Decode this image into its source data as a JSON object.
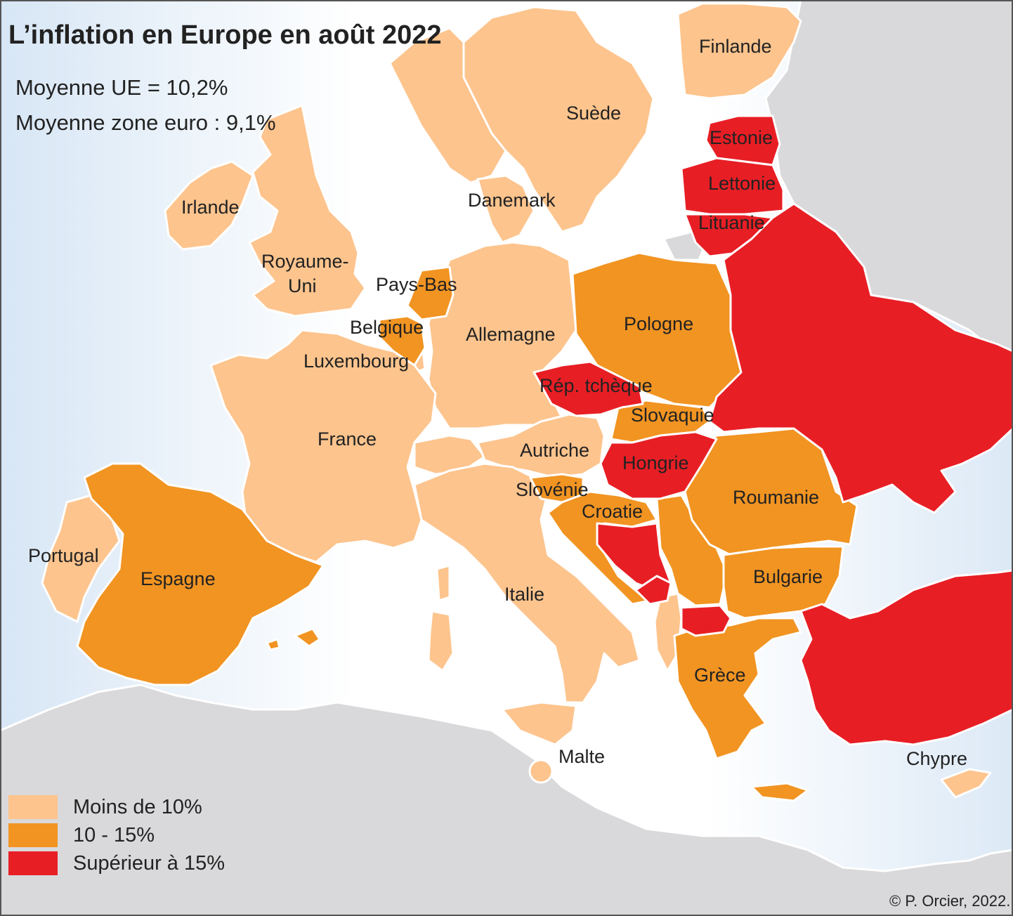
{
  "title": "L’inflation en Europe en août 2022",
  "averages": {
    "eu": "Moyenne UE = 10,2%",
    "eurozone": "Moyenne zone euro : 9,1%"
  },
  "colors": {
    "sea_light": "#ffffff",
    "sea_dark": "#d7e6f5",
    "outside": "#d9d9db",
    "low": "#fdc48d",
    "mid": "#f19422",
    "high": "#e81e25",
    "border": "#ffffff"
  },
  "legend": {
    "low": "Moins de 10%",
    "mid": "10 - 15%",
    "high": "Supérieur à 15%"
  },
  "countries": {
    "finlande": {
      "label": "Finlande",
      "class": "Moins de 10%"
    },
    "suede": {
      "label": "Suède",
      "class": "Moins de 10%"
    },
    "estonie": {
      "label": "Estonie",
      "class": "Supérieur à 15%"
    },
    "lettonie": {
      "label": "Lettonie",
      "class": "Supérieur à 15%"
    },
    "lituanie": {
      "label": "Lituanie",
      "class": "Supérieur à 15%"
    },
    "irlande": {
      "label": "Irlande",
      "class": "Moins de 10%"
    },
    "danemark": {
      "label": "Danemark",
      "class": "Moins de 10%"
    },
    "royaume_uni": {
      "label_1": "Royaume-",
      "label_2": "Uni",
      "class": "Moins de 10%"
    },
    "pays_bas": {
      "label": "Pays-Bas",
      "class": "10 - 15%"
    },
    "belgique": {
      "label": "Belgique",
      "class": "10 - 15%"
    },
    "luxembourg": {
      "label": "Luxembourg",
      "class": "Moins de 10%"
    },
    "allemagne": {
      "label": "Allemagne",
      "class": "Moins de 10%"
    },
    "pologne": {
      "label": "Pologne",
      "class": "10 - 15%"
    },
    "rep_tcheque": {
      "label": "Rép. tchèque",
      "class": "Supérieur à 15%"
    },
    "slovaquie": {
      "label": "Slovaquie",
      "class": "10 - 15%"
    },
    "france": {
      "label": "France",
      "class": "Moins de 10%"
    },
    "autriche": {
      "label": "Autriche",
      "class": "Moins de 10%"
    },
    "hongrie": {
      "label": "Hongrie",
      "class": "Supérieur à 15%"
    },
    "slovenie": {
      "label": "Slovénie",
      "class": "10 - 15%"
    },
    "croatie": {
      "label": "Croatie",
      "class": "10 - 15%"
    },
    "roumanie": {
      "label": "Roumanie",
      "class": "10 - 15%"
    },
    "portugal": {
      "label": "Portugal",
      "class": "Moins de 10%"
    },
    "espagne": {
      "label": "Espagne",
      "class": "10 - 15%"
    },
    "italie": {
      "label": "Italie",
      "class": "Moins de 10%"
    },
    "bulgarie": {
      "label": "Bulgarie",
      "class": "10 - 15%"
    },
    "grece": {
      "label": "Grèce",
      "class": "10 - 15%"
    },
    "malte": {
      "label": "Malte",
      "class": "Moins de 10%"
    },
    "chypre": {
      "label": "Chypre",
      "class": "Moins de 10%"
    }
  },
  "copyright": "© P. Orcier, 2022."
}
